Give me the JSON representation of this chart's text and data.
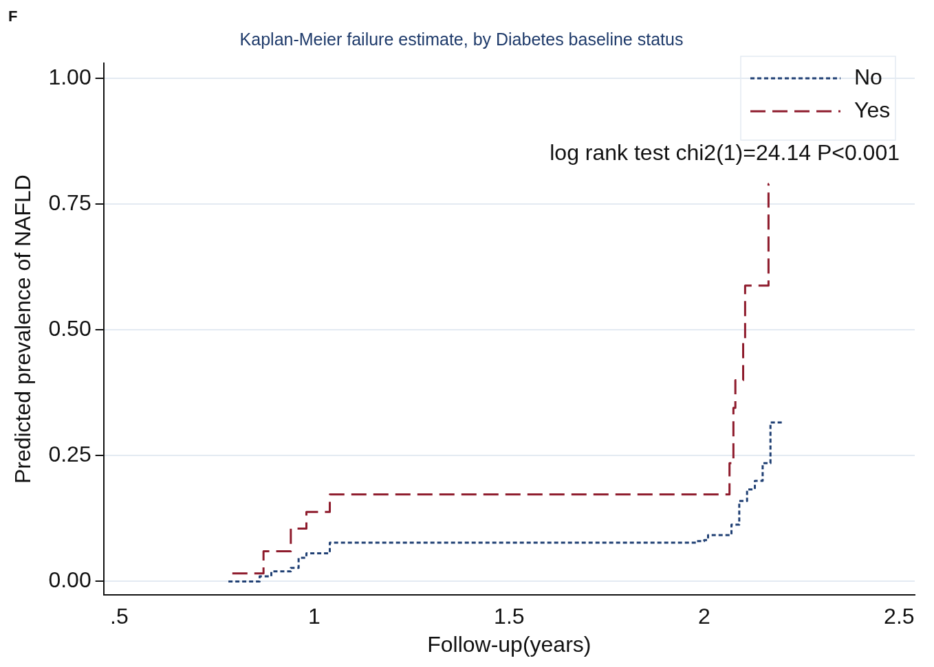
{
  "chart_data": {
    "type": "step",
    "title": "Kaplan-Meier failure estimate, by Diabetes baseline status",
    "xlabel": "Follow-up(years)",
    "ylabel": "Predicted prevalence of NAFLD",
    "annotations": [
      "F",
      "log rank test chi2(1)=24.14 P<0.001"
    ],
    "xlim": [
      0.46,
      2.54
    ],
    "xticks": [
      {
        "value": 0.5,
        "label": ".5"
      },
      1,
      1.5,
      2,
      2.5
    ],
    "ylim": [
      -0.027,
      1.03
    ],
    "yticks": [
      {
        "value": 0,
        "label": "0.00"
      },
      {
        "value": 0.25,
        "label": "0.25"
      },
      {
        "value": 0.5,
        "label": "0.50"
      },
      {
        "value": 0.75,
        "label": "0.75"
      },
      {
        "value": 1,
        "label": "1.00"
      }
    ],
    "grid": "y",
    "legend": "top right",
    "series": [
      {
        "name": "No",
        "color": "#1f3f73",
        "line_style": "dotted",
        "x": [
          0.78,
          0.86,
          0.89,
          0.94,
          0.96,
          0.98,
          1.04,
          1.98,
          2.0,
          2.01,
          2.06,
          2.07,
          2.09,
          2.11,
          2.13,
          2.15,
          2.17,
          2.2
        ],
        "values": [
          0,
          0.01,
          0.02,
          0.027,
          0.047,
          0.056,
          0.077,
          0.08,
          0.082,
          0.092,
          0.092,
          0.113,
          0.16,
          0.183,
          0.2,
          0.235,
          0.316,
          0.316
        ]
      },
      {
        "name": "Yes",
        "color": "#8e1b2c",
        "line_style": "dashed",
        "x": [
          0.79,
          0.87,
          0.94,
          0.98,
          1.04,
          2.06,
          2.065,
          2.075,
          2.08,
          2.1,
          2.105,
          2.165,
          2.166
        ],
        "values": [
          0.016,
          0.06,
          0.105,
          0.138,
          0.173,
          0.173,
          0.235,
          0.345,
          0.4,
          0.48,
          0.588,
          0.79,
          0.79
        ]
      }
    ]
  }
}
